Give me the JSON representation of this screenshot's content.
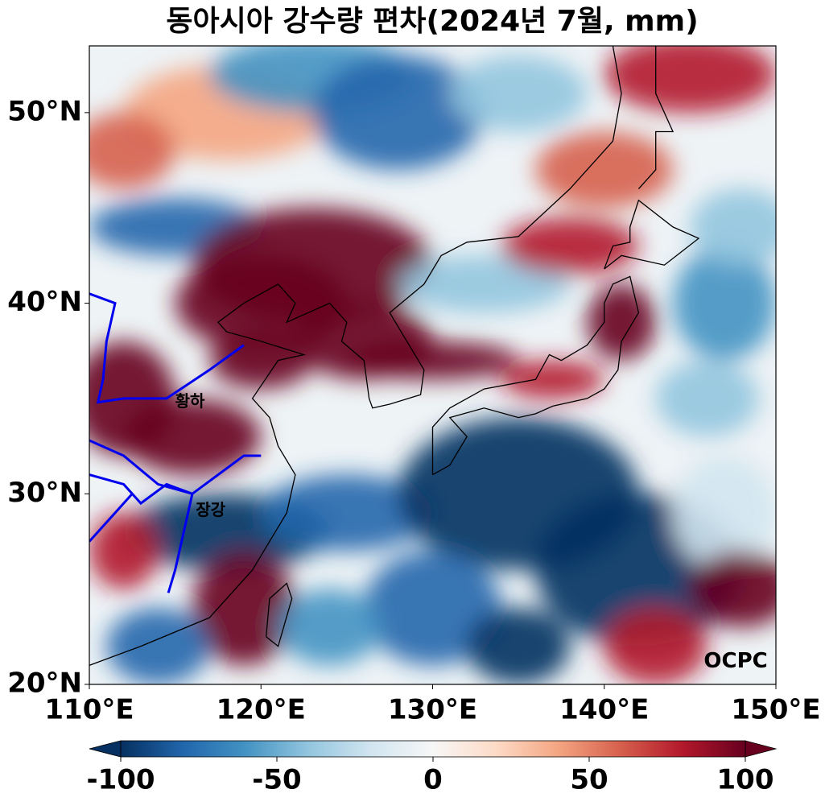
{
  "chart_data": {
    "type": "map",
    "title": "동아시아 강수량 편차(2024년 7월, mm)",
    "xlim": [
      110,
      150
    ],
    "ylim": [
      20,
      53.5
    ],
    "xticks": [
      {
        "value": 110,
        "label": "110°E"
      },
      {
        "value": 120,
        "label": "120°E"
      },
      {
        "value": 130,
        "label": "130°E"
      },
      {
        "value": 140,
        "label": "140°E"
      },
      {
        "value": 150,
        "label": "150°E"
      }
    ],
    "yticks": [
      {
        "value": 20,
        "label": "20°N"
      },
      {
        "value": 30,
        "label": "30°N"
      },
      {
        "value": 40,
        "label": "40°N"
      },
      {
        "value": 50,
        "label": "50°N"
      }
    ],
    "colorbar": {
      "lim": [
        -100,
        100
      ],
      "ticks": [
        -100,
        -50,
        0,
        50,
        100
      ],
      "colors": [
        "#053061",
        "#2166ac",
        "#4393c3",
        "#92c5de",
        "#d1e5f0",
        "#f7f7f7",
        "#fddbc7",
        "#f4a582",
        "#d6604d",
        "#b2182b",
        "#67001f"
      ]
    },
    "annotations": [
      "황하",
      "장강",
      "OCPC"
    ]
  }
}
